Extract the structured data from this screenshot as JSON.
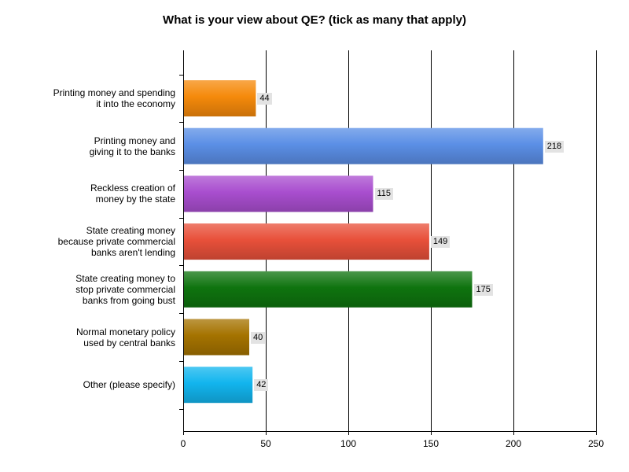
{
  "chart_data": {
    "type": "bar",
    "orientation": "horizontal",
    "title": "What is your view about QE? (tick as many that apply)",
    "xlabel": "",
    "ylabel": "",
    "xlim": [
      0,
      250
    ],
    "ticks": [
      0,
      50,
      100,
      150,
      200,
      250
    ],
    "tick_labels": [
      "0",
      "50",
      "100",
      "150",
      "200",
      "250"
    ],
    "grid": "vertical lines",
    "legend": "none",
    "categories": [
      "Printing money and spending\nit into the economy",
      "Printing money and\ngiving it to the banks",
      "Reckless creation of\nmoney by the state",
      "State creating money\nbecause private commercial\nbanks aren't lending",
      "State creating money to\nstop private commercial\nbanks from going bust",
      "Normal monetary policy\nused by central banks",
      "Other (please specify)"
    ],
    "values": [
      44,
      218,
      115,
      149,
      175,
      40,
      42
    ],
    "value_labels": [
      "44",
      "218",
      "115",
      "149",
      "175",
      "40",
      "42"
    ],
    "colors": [
      "#f58a0b",
      "#5b8fe6",
      "#a94ecf",
      "#e8503a",
      "#0f740f",
      "#a57300",
      "#12b5ee"
    ]
  }
}
